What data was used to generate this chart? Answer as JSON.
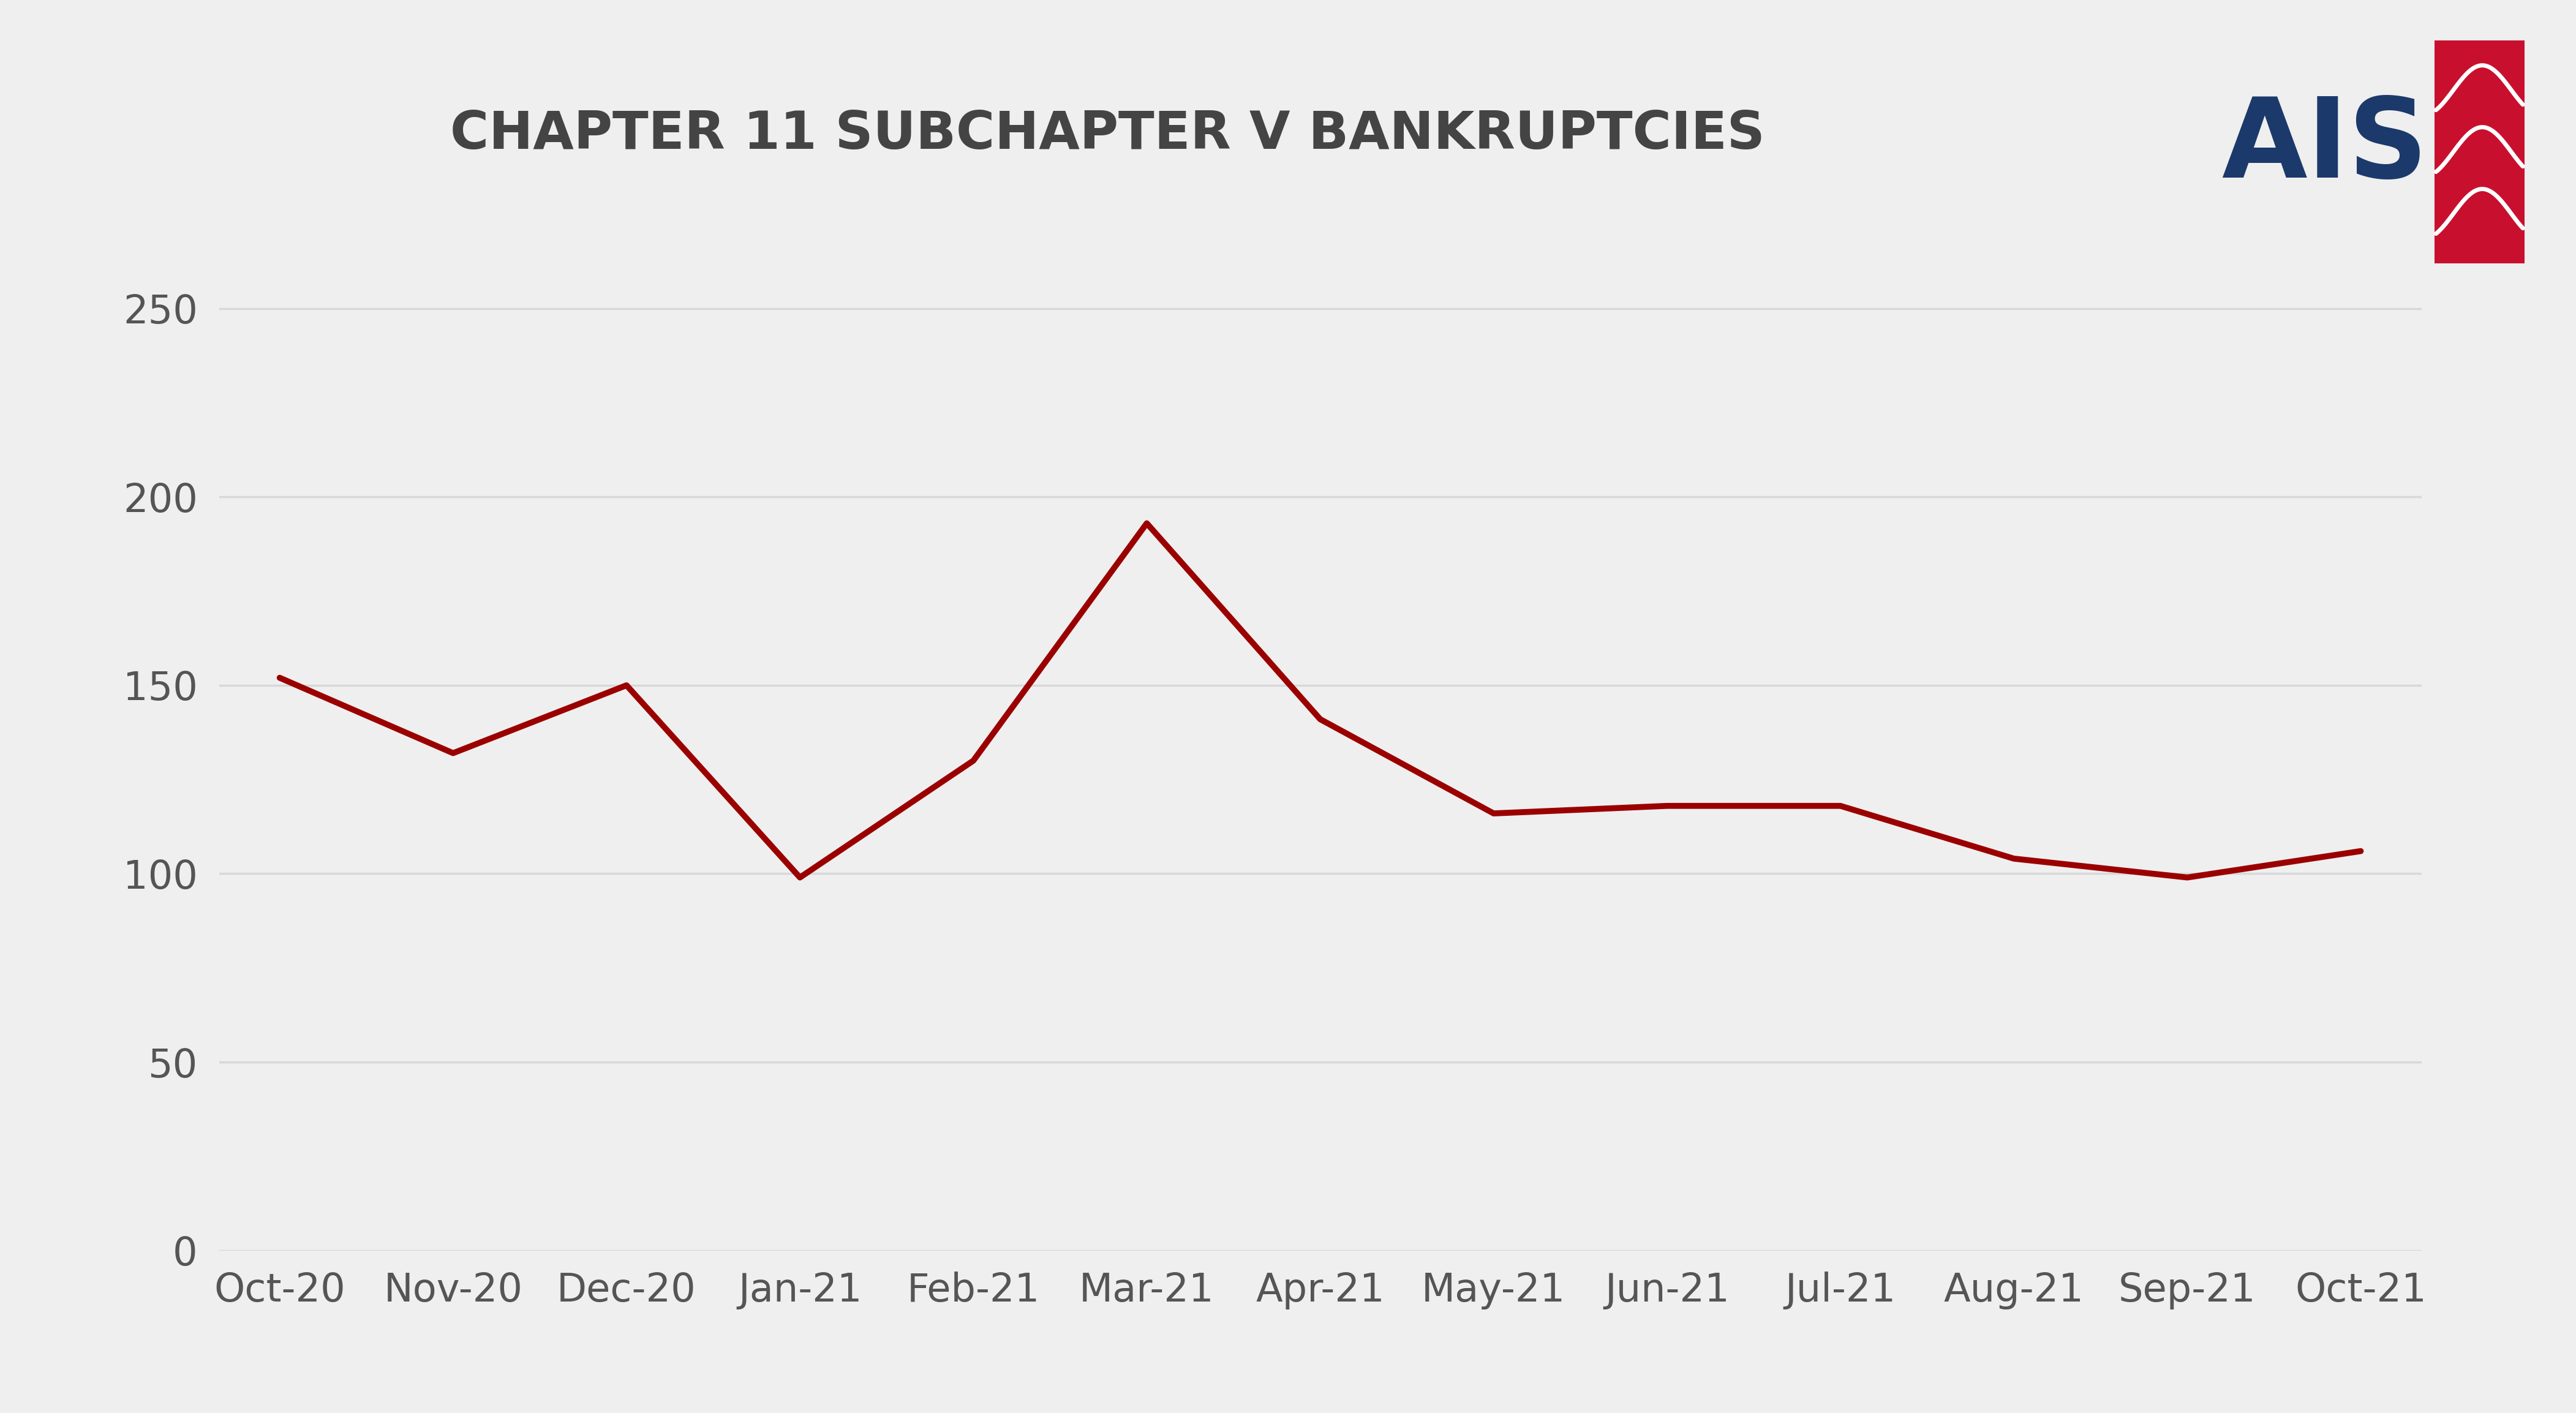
{
  "title": "CHAPTER 11 SUBCHAPTER V BANKRUPTCIES",
  "title_fontsize": 62,
  "title_fontweight": "bold",
  "title_color": "#444444",
  "categories": [
    "Oct-20",
    "Nov-20",
    "Dec-20",
    "Jan-21",
    "Feb-21",
    "Mar-21",
    "Apr-21",
    "May-21",
    "Jun-21",
    "Jul-21",
    "Aug-21",
    "Sep-21",
    "Oct-21"
  ],
  "values": [
    152,
    132,
    150,
    99,
    130,
    193,
    141,
    116,
    118,
    118,
    104,
    99,
    106
  ],
  "line_color": "#9B0000",
  "line_width": 7,
  "ylim": [
    0,
    270
  ],
  "yticks": [
    0,
    50,
    100,
    150,
    200,
    250
  ],
  "background_color": "#EFEFEF",
  "grid_color": "#D8D8D8",
  "grid_linewidth": 2.5,
  "tick_labelsize": 46,
  "tick_color": "#555555",
  "ais_logo_color": "#1B3A6B",
  "ais_logo_red": "#C8102E",
  "ais_fontsize": 130
}
